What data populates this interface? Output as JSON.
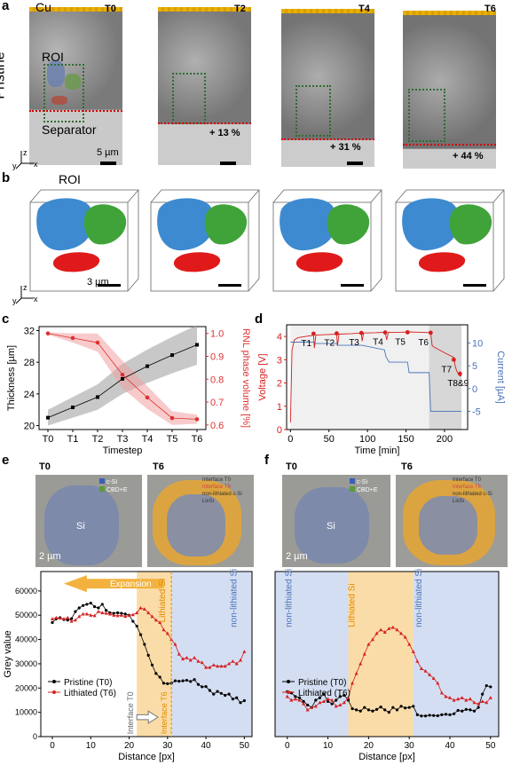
{
  "panels": {
    "a": "a",
    "b": "b",
    "c": "c",
    "d": "d",
    "e": "e",
    "f": "f"
  },
  "panel_a": {
    "cu_label": "Cu",
    "timesteps": [
      "T0",
      "T2",
      "T4",
      "T6"
    ],
    "roi_label": "ROI",
    "row_label": "Pristine",
    "separator_label": "Separator",
    "scale_label": "5 µm",
    "growth_labels": [
      "+ 13 %",
      "+ 31 %",
      "+ 44 %"
    ],
    "axes": {
      "z": "z",
      "y": "y",
      "x": "x"
    }
  },
  "panel_b": {
    "roi_label": "ROI",
    "scale_label": "3 µm",
    "axes": {
      "z": "z",
      "y": "y",
      "x": "x"
    }
  },
  "panel_e": {
    "t0": "T0",
    "t6": "T6",
    "legend_t0": [
      "c-Si",
      "CBD+E"
    ],
    "legend_t6": [
      "Interface T0",
      "Interface T6",
      "non-lithiated c-Si",
      "LixSi"
    ],
    "si_label": "Si",
    "scale_label": "2 µm"
  },
  "panel_f": {
    "t0": "T0",
    "t6": "T6",
    "legend_t0": [
      "c-Si",
      "CBD+E"
    ],
    "legend_t6": [
      "Interface T0",
      "Interface T6",
      "non-lithiated c-Si",
      "LixSi"
    ],
    "si_label": "Si",
    "scale_label": "2 µm"
  },
  "chart_data": [
    {
      "id": "c",
      "type": "line",
      "xlabel": "Timestep",
      "ylabel": "Thickness [µm]",
      "y2label": "RNL phase volume [%]",
      "categories": [
        "T0",
        "T1",
        "T2",
        "T3",
        "T4",
        "T5",
        "T6"
      ],
      "ylim": [
        19.5,
        32.5
      ],
      "y2lim": [
        0.58,
        1.03
      ],
      "yticks": [
        20,
        24,
        28,
        32
      ],
      "y2ticks": [
        0.6,
        0.7,
        0.8,
        0.9,
        1.0
      ],
      "series": [
        {
          "axis": "left",
          "color": "#000000",
          "values": [
            21.0,
            22.3,
            23.6,
            25.9,
            27.5,
            28.9,
            30.2
          ],
          "band": [
            1.0,
            1.3,
            1.6,
            1.9,
            2.1,
            2.3,
            2.5
          ]
        },
        {
          "axis": "right",
          "color": "#e03030",
          "values": [
            1.0,
            0.98,
            0.96,
            0.82,
            0.72,
            0.63,
            0.625
          ],
          "band": [
            0.005,
            0.02,
            0.04,
            0.06,
            0.05,
            0.03,
            0.02
          ]
        }
      ]
    },
    {
      "id": "d",
      "type": "line",
      "xlabel": "Time [min]",
      "ylabel": "Voltage [V]",
      "y2label": "Current [µA]",
      "xlim": [
        -5,
        230
      ],
      "ylim": [
        0,
        4.5
      ],
      "y2lim": [
        -9,
        14
      ],
      "xticks": [
        0,
        50,
        100,
        150,
        200
      ],
      "yticks": [
        0,
        1,
        2,
        3,
        4
      ],
      "y2ticks": [
        -5,
        0,
        5,
        10
      ],
      "markers": [
        "T1",
        "T2",
        "T3",
        "T4",
        "T5",
        "T6",
        "T7",
        "T8&9"
      ],
      "marker_times": [
        30,
        60,
        92,
        123,
        152,
        182,
        212,
        220
      ],
      "marker_voltages": [
        4.12,
        4.13,
        4.15,
        4.17,
        4.18,
        4.16,
        3.0,
        2.4
      ],
      "voltage": {
        "x": [
          0,
          2,
          5,
          10,
          20,
          30,
          31,
          33,
          45,
          60,
          61,
          63,
          80,
          92,
          93,
          95,
          110,
          123,
          125,
          127,
          140,
          152,
          154,
          156,
          170,
          182,
          184,
          186,
          200,
          212,
          214,
          216,
          220,
          222
        ],
        "y": [
          0.3,
          3.4,
          3.85,
          3.95,
          4.0,
          4.05,
          3.5,
          4.06,
          4.08,
          4.1,
          3.6,
          4.1,
          4.12,
          4.15,
          3.8,
          4.15,
          4.16,
          4.18,
          3.85,
          4.18,
          4.18,
          4.19,
          4.19,
          4.19,
          4.18,
          4.16,
          3.6,
          3.55,
          3.3,
          3.1,
          2.7,
          2.5,
          2.3,
          2.3
        ]
      },
      "current": {
        "x": [
          0,
          30,
          31,
          60,
          61,
          92,
          93,
          122,
          124,
          128,
          152,
          154,
          180,
          182,
          222
        ],
        "y": [
          10.2,
          10.2,
          9.9,
          9.9,
          9.5,
          9.5,
          9.5,
          8.5,
          7.0,
          5.8,
          5.8,
          3.5,
          3.5,
          -5,
          -5
        ]
      }
    },
    {
      "id": "e",
      "type": "line",
      "xlabel": "Distance [px]",
      "ylabel": "Grey value",
      "xlim": [
        -3,
        52
      ],
      "ylim": [
        0,
        68000
      ],
      "xticks": [
        0,
        10,
        20,
        30,
        40,
        50
      ],
      "yticks": [
        0,
        10000,
        20000,
        30000,
        40000,
        50000,
        60000
      ],
      "annotations": [
        "Expansion",
        "Lithiated Si",
        "non-lithiated Si",
        "Interface T0",
        "Interface T6"
      ],
      "legend": [
        "Pristine (T0)",
        "Lithiated (T6)"
      ],
      "series": [
        {
          "name": "Pristine (T0)",
          "color": "#000000",
          "x": [
            0,
            1,
            2,
            3,
            4,
            5,
            6,
            7,
            8,
            9,
            10,
            11,
            12,
            13,
            14,
            15,
            16,
            17,
            18,
            19,
            20,
            21,
            22,
            23,
            24,
            25,
            26,
            27,
            28,
            29,
            30,
            31,
            32,
            33,
            34,
            35,
            36,
            37,
            38,
            39,
            40,
            41,
            42,
            43,
            44,
            45,
            46,
            47,
            48,
            49,
            50
          ],
          "values": [
            47000,
            48500,
            49000,
            48200,
            48000,
            48600,
            51500,
            53000,
            54000,
            54500,
            55000,
            53500,
            53000,
            54500,
            52000,
            51000,
            50800,
            51000,
            50800,
            50500,
            50000,
            47500,
            45500,
            42000,
            38000,
            33500,
            29500,
            26000,
            24500,
            22000,
            21800,
            22000,
            23000,
            22800,
            23000,
            23200,
            22700,
            23500,
            21500,
            20500,
            20600,
            19000,
            17500,
            18600,
            17800,
            17000,
            17500,
            15500,
            16000,
            14000,
            14800
          ]
        },
        {
          "name": "Lithiated (T6)",
          "color": "#d42020",
          "x": [
            0,
            1,
            2,
            3,
            4,
            5,
            6,
            7,
            8,
            9,
            10,
            11,
            12,
            13,
            14,
            15,
            16,
            17,
            18,
            19,
            20,
            21,
            22,
            23,
            24,
            25,
            26,
            27,
            28,
            29,
            30,
            31,
            32,
            33,
            34,
            35,
            36,
            37,
            38,
            39,
            40,
            41,
            42,
            43,
            44,
            45,
            46,
            47,
            48,
            49,
            50
          ],
          "values": [
            48500,
            49000,
            48800,
            48500,
            49000,
            47500,
            48000,
            49500,
            50500,
            50500,
            50000,
            49800,
            51500,
            51000,
            50800,
            50500,
            50000,
            49800,
            50000,
            49500,
            50000,
            50200,
            51000,
            53000,
            52500,
            51000,
            49500,
            48000,
            47000,
            44000,
            42500,
            40000,
            38000,
            34000,
            32000,
            32500,
            31500,
            32500,
            31000,
            30500,
            28500,
            28500,
            29500,
            29000,
            29000,
            29000,
            30000,
            31000,
            30000,
            31500,
            35000
          ]
        }
      ]
    },
    {
      "id": "f",
      "type": "line",
      "xlabel": "Distance [px]",
      "ylabel": "",
      "xlim": [
        -3,
        52
      ],
      "ylim": [
        0,
        68000
      ],
      "xticks": [
        0,
        10,
        20,
        30,
        40,
        50
      ],
      "annotations": [
        "non-lithiated Si",
        "Lithiated Si",
        "non-lithiated Si"
      ],
      "legend": [
        "Pristine (T0)",
        "Lithiated (T6)"
      ],
      "series": [
        {
          "name": "Pristine (T0)",
          "color": "#000000",
          "x": [
            0,
            1,
            2,
            3,
            4,
            5,
            6,
            7,
            8,
            9,
            10,
            11,
            12,
            13,
            14,
            15,
            16,
            17,
            18,
            19,
            20,
            21,
            22,
            23,
            24,
            25,
            26,
            27,
            28,
            29,
            30,
            31,
            32,
            33,
            34,
            35,
            36,
            37,
            38,
            39,
            40,
            41,
            42,
            43,
            44,
            45,
            46,
            47,
            48,
            49,
            50
          ],
          "values": [
            18500,
            18000,
            16500,
            16000,
            14500,
            13000,
            12000,
            15000,
            16000,
            17500,
            14500,
            13500,
            15000,
            16500,
            17000,
            15000,
            11500,
            11000,
            10500,
            12000,
            11000,
            10500,
            11200,
            12200,
            11000,
            10000,
            12000,
            11000,
            12500,
            11800,
            12000,
            12500,
            9000,
            8500,
            8500,
            8800,
            8700,
            8600,
            9000,
            9200,
            9000,
            9400,
            10800,
            10500,
            11200,
            11000,
            10500,
            12000,
            17500,
            21000,
            20500
          ]
        },
        {
          "name": "Lithiated (T6)",
          "color": "#d42020",
          "x": [
            0,
            1,
            2,
            3,
            4,
            5,
            6,
            7,
            8,
            9,
            10,
            11,
            12,
            13,
            14,
            15,
            16,
            17,
            18,
            19,
            20,
            21,
            22,
            23,
            24,
            25,
            26,
            27,
            28,
            29,
            30,
            31,
            32,
            33,
            34,
            35,
            36,
            37,
            38,
            39,
            40,
            41,
            42,
            43,
            44,
            45,
            46,
            47,
            48,
            49,
            50
          ],
          "values": [
            16500,
            15000,
            15500,
            15000,
            13500,
            11000,
            12000,
            12500,
            14000,
            14500,
            15500,
            15000,
            12500,
            13000,
            14000,
            16000,
            22000,
            26000,
            30000,
            34000,
            38000,
            40000,
            42500,
            44000,
            43000,
            44500,
            45000,
            44000,
            42500,
            41000,
            38000,
            35000,
            31000,
            28000,
            27000,
            25500,
            24000,
            22000,
            18000,
            16500,
            16000,
            15000,
            15500,
            16000,
            15000,
            15500,
            14000,
            13500,
            14500,
            14000,
            16000
          ]
        }
      ]
    }
  ]
}
